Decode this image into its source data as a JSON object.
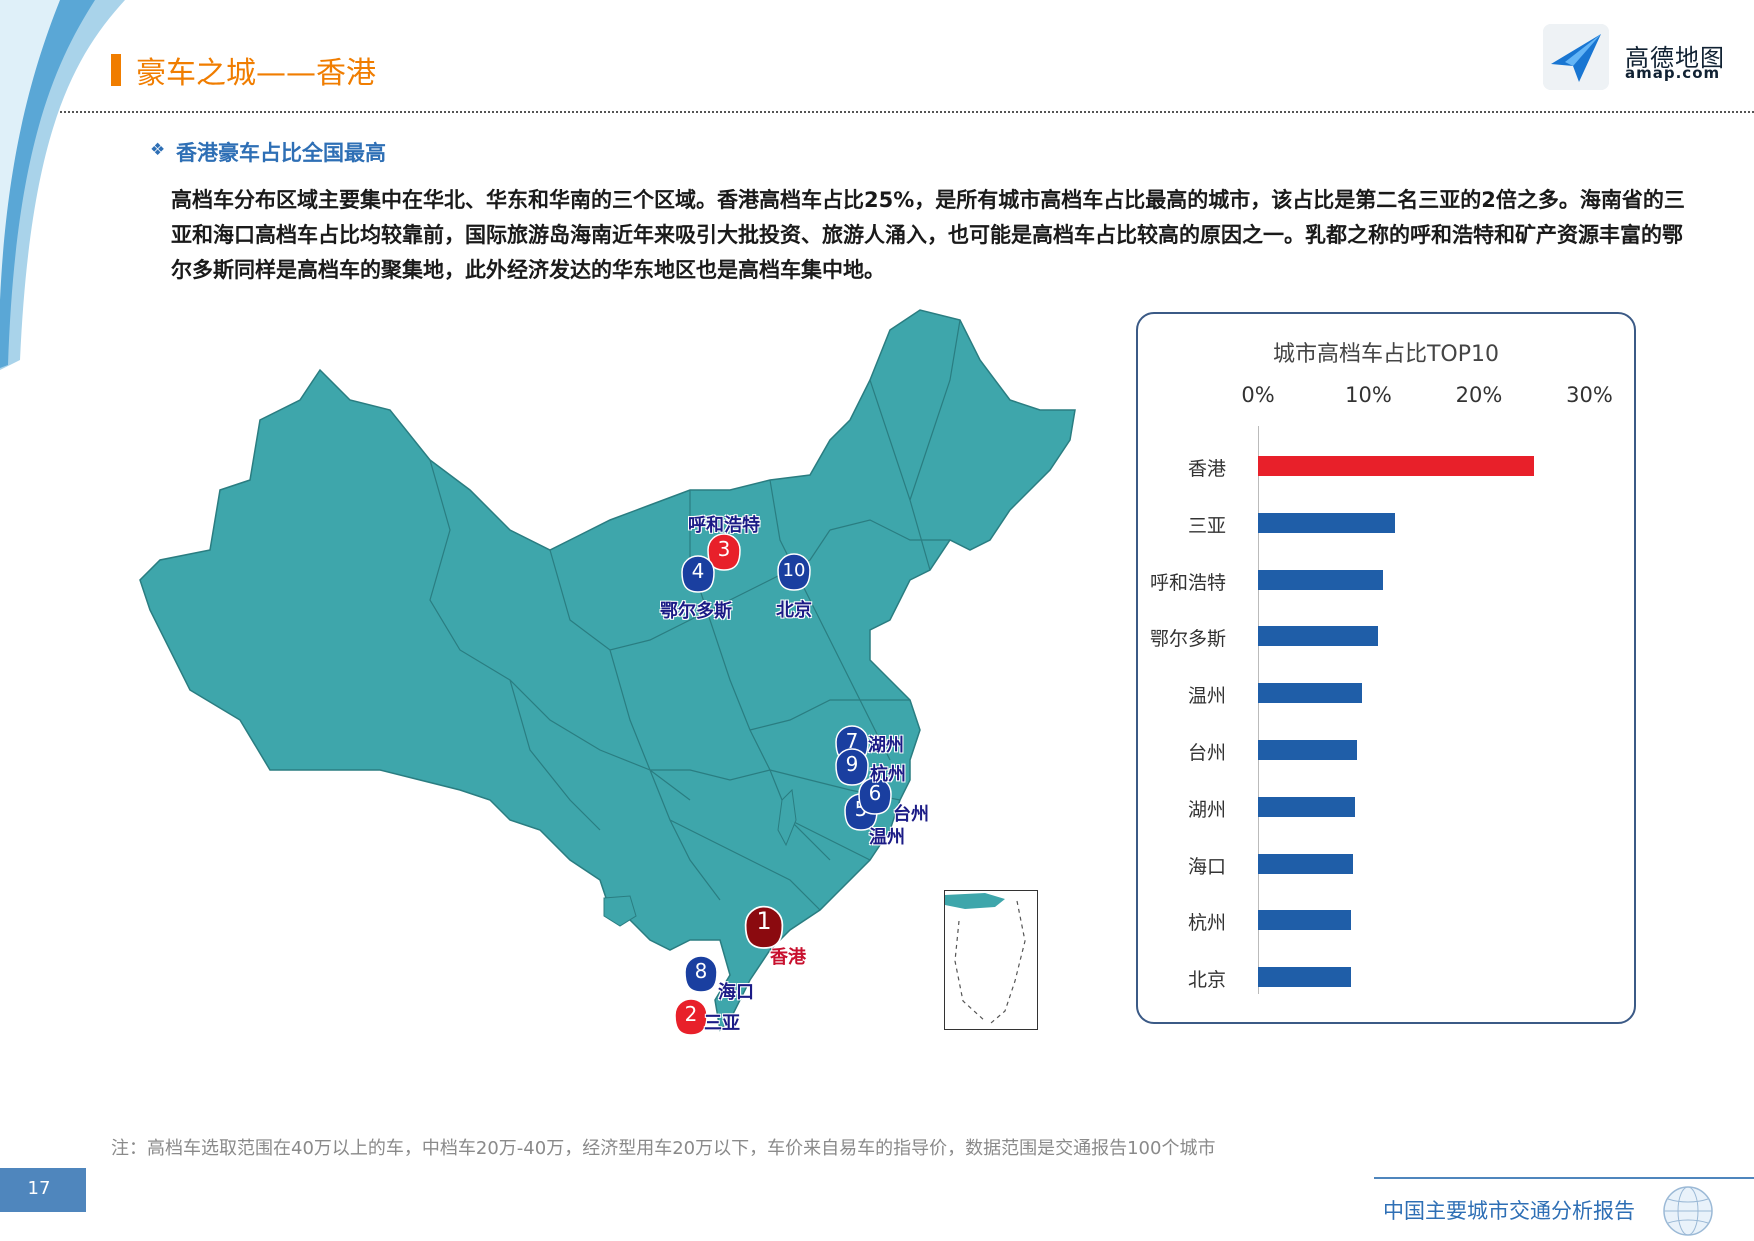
{
  "header": {
    "title": "豪车之城——香港",
    "logo_name": "高德地图",
    "logo_url": "amap.com"
  },
  "section": {
    "bullet": "❖",
    "title": "香港豪车占比全国最高"
  },
  "intro": "高档车分布区域主要集中在华北、华东和华南的三个区域。香港高档车占比25%，是所有城市高档车占比最高的城市，该占比是第二名三亚的2倍之多。海南省的三亚和海口高档车占比均较靠前，国际旅游岛海南近年来吸引大批投资、旅游人涌入，也可能是高档车占比较高的原因之一。乳都之称的呼和浩特和矿产资源丰富的鄂尔多斯同样是高档车的聚集地，此外经济发达的华东地区也是高档车集中地。",
  "map": {
    "pins": [
      {
        "rank": "1",
        "city": "香港"
      },
      {
        "rank": "2",
        "city": "三亚"
      },
      {
        "rank": "3",
        "city": "呼和浩特"
      },
      {
        "rank": "4",
        "city": "鄂尔多斯"
      },
      {
        "rank": "5",
        "city": "温州"
      },
      {
        "rank": "6",
        "city": "台州"
      },
      {
        "rank": "7",
        "city": "湖州"
      },
      {
        "rank": "8",
        "city": "海口"
      },
      {
        "rank": "9",
        "city": "杭州"
      },
      {
        "rank": "10",
        "city": "北京"
      }
    ]
  },
  "chart_data": {
    "type": "bar",
    "orientation": "horizontal",
    "title": "城市高档车占比TOP10",
    "x_tick_labels": [
      "0%",
      "10%",
      "20%",
      "30%"
    ],
    "xlim": [
      0,
      30
    ],
    "x_axis_position": "top",
    "grid": false,
    "categories": [
      "香港",
      "三亚",
      "呼和浩特",
      "鄂尔多斯",
      "温州",
      "台州",
      "湖州",
      "海口",
      "杭州",
      "北京"
    ],
    "values": [
      25.0,
      12.4,
      11.3,
      10.9,
      9.4,
      9.0,
      8.8,
      8.6,
      8.4,
      8.4
    ],
    "colors": [
      "#e8202a",
      "#1f5ea8",
      "#1f5ea8",
      "#1f5ea8",
      "#1f5ea8",
      "#1f5ea8",
      "#1f5ea8",
      "#1f5ea8",
      "#1f5ea8",
      "#1f5ea8"
    ]
  },
  "footnote": "注：高档车选取范围在40万以上的车，中档车20万-40万，经济型用车20万以下，车价来自易车的指导价，数据范围是交通报告100个城市",
  "page_number": "17",
  "footer": {
    "report_title": "中国主要城市交通分析报告"
  },
  "colors": {
    "accent_orange": "#f07d00",
    "accent_blue": "#2e6fb5",
    "map_fill": "#3ea6ab",
    "pin_blue": "#1a3fa0",
    "pin_red": "#e8202a",
    "pin_darkred": "#8b0a0f"
  }
}
